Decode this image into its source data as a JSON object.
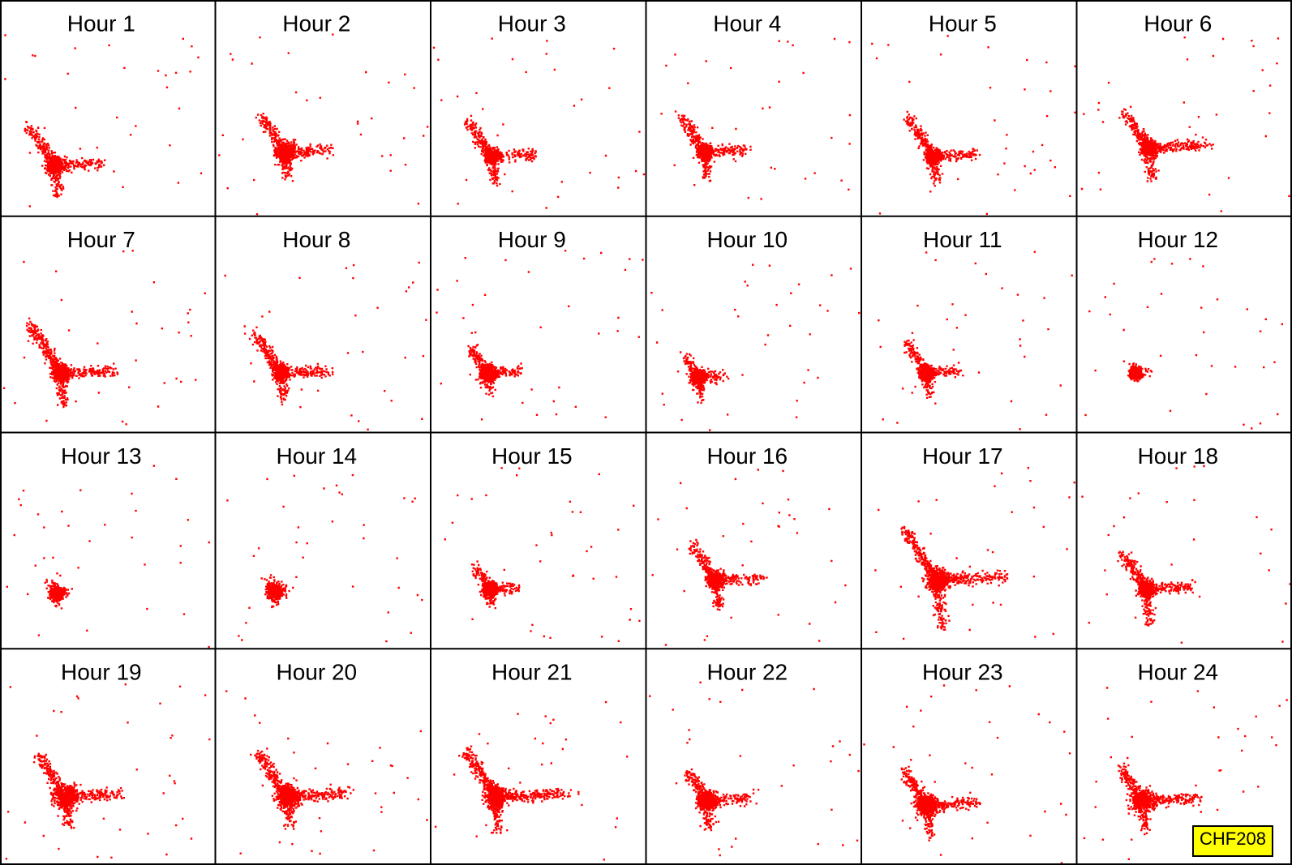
{
  "panels": [
    {
      "title": "Hour 1"
    },
    {
      "title": "Hour 2"
    },
    {
      "title": "Hour 3"
    },
    {
      "title": "Hour 4"
    },
    {
      "title": "Hour 5"
    },
    {
      "title": "Hour 6"
    },
    {
      "title": "Hour 7"
    },
    {
      "title": "Hour 8"
    },
    {
      "title": "Hour 9"
    },
    {
      "title": "Hour 10"
    },
    {
      "title": "Hour 11"
    },
    {
      "title": "Hour 12"
    },
    {
      "title": "Hour 13"
    },
    {
      "title": "Hour 14"
    },
    {
      "title": "Hour 15"
    },
    {
      "title": "Hour 16"
    },
    {
      "title": "Hour 17"
    },
    {
      "title": "Hour 18"
    },
    {
      "title": "Hour 19"
    },
    {
      "title": "Hour 20"
    },
    {
      "title": "Hour 21"
    },
    {
      "title": "Hour 22"
    },
    {
      "title": "Hour 23"
    },
    {
      "title": "Hour 24"
    }
  ],
  "badge": "CHF208"
}
